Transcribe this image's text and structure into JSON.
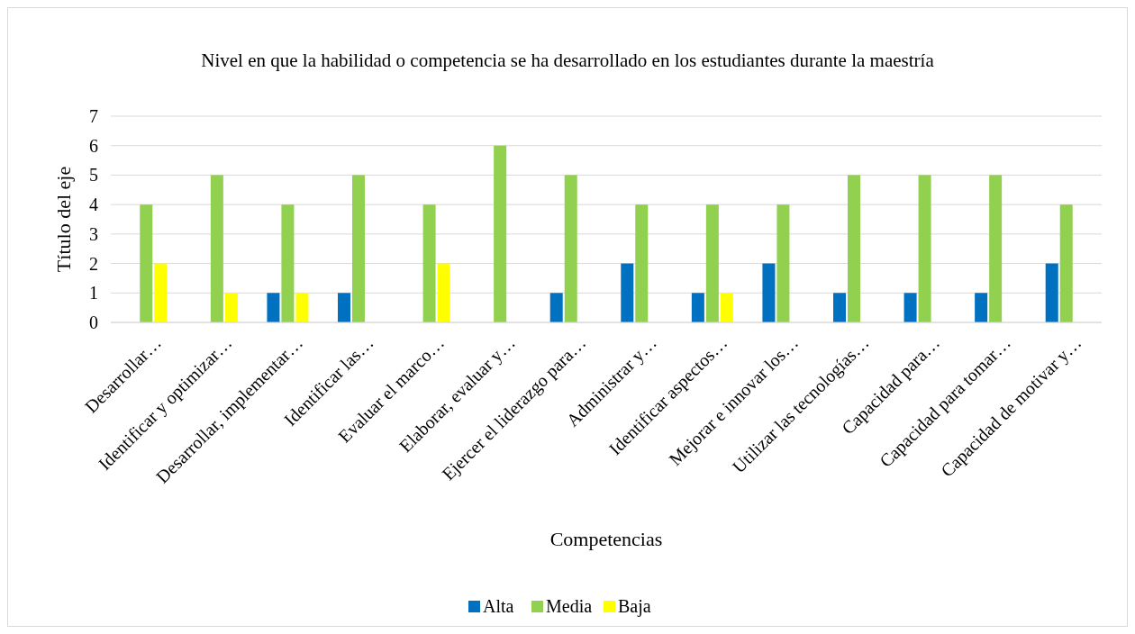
{
  "chart_data": {
    "type": "bar",
    "title": "Nivel en que la habilidad o competencia se ha desarrollado en los estudiantes durante la maestría",
    "xlabel": "Competencias",
    "ylabel": "Título del eje",
    "categories": [
      "Desarrollar…",
      "Identificar y optimizar…",
      "Desarrollar, implementar…",
      "Identificar las…",
      "Evaluar el marco…",
      "Elaborar, evaluar y…",
      "Ejercer el liderazgo para…",
      "Administrar y…",
      "Identificar aspectos…",
      "Mejorar e innovar los…",
      "Utilizar las tecnologías…",
      "Capacidad para…",
      "Capacidad para tomar…",
      "Capacidad de motivar y…"
    ],
    "series": [
      {
        "name": "Alta",
        "color": "#0070c0",
        "values": [
          0,
          0,
          1,
          1,
          0,
          0,
          1,
          2,
          1,
          2,
          1,
          1,
          1,
          2
        ]
      },
      {
        "name": "Media",
        "color": "#92d050",
        "values": [
          4,
          5,
          4,
          5,
          4,
          6,
          5,
          4,
          4,
          4,
          5,
          5,
          5,
          4
        ]
      },
      {
        "name": "Baja",
        "color": "#ffff00",
        "values": [
          2,
          1,
          1,
          0,
          2,
          0,
          0,
          0,
          1,
          0,
          0,
          0,
          0,
          0
        ]
      }
    ],
    "ylim": [
      0,
      7
    ],
    "yticks": [
      0,
      1,
      2,
      3,
      4,
      5,
      6,
      7
    ],
    "grid": "y",
    "legend": "bottom"
  }
}
